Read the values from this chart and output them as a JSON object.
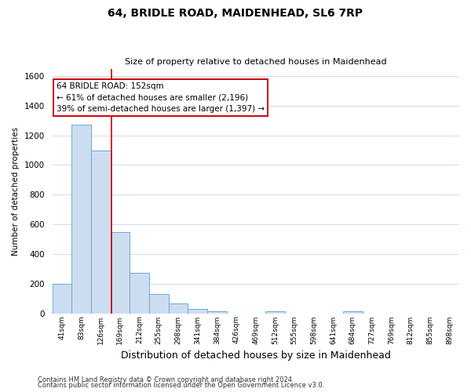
{
  "title": "64, BRIDLE ROAD, MAIDENHEAD, SL6 7RP",
  "subtitle": "Size of property relative to detached houses in Maidenhead",
  "xlabel": "Distribution of detached houses by size in Maidenhead",
  "ylabel": "Number of detached properties",
  "footer_line1": "Contains HM Land Registry data © Crown copyright and database right 2024.",
  "footer_line2": "Contains public sector information licensed under the Open Government Licence v3.0.",
  "bin_labels": [
    "41sqm",
    "83sqm",
    "126sqm",
    "169sqm",
    "212sqm",
    "255sqm",
    "298sqm",
    "341sqm",
    "384sqm",
    "426sqm",
    "469sqm",
    "512sqm",
    "555sqm",
    "598sqm",
    "641sqm",
    "684sqm",
    "727sqm",
    "769sqm",
    "812sqm",
    "855sqm",
    "898sqm"
  ],
  "bar_heights": [
    200,
    1270,
    1100,
    550,
    270,
    130,
    65,
    30,
    15,
    0,
    0,
    15,
    0,
    0,
    0,
    15,
    0,
    0,
    0,
    0,
    0
  ],
  "bar_color": "#ccddf0",
  "bar_edge_color": "#6aaad4",
  "ylim": [
    0,
    1650
  ],
  "yticks": [
    0,
    200,
    400,
    600,
    800,
    1000,
    1200,
    1400,
    1600
  ],
  "vline_x": 2.57,
  "vline_color": "#cc0000",
  "annotation_title": "64 BRIDLE ROAD: 152sqm",
  "annotation_line1": "← 61% of detached houses are smaller (2,196)",
  "annotation_line2": "39% of semi-detached houses are larger (1,397) →",
  "annotation_box_color": "#ffffff",
  "annotation_box_edge": "#cc0000",
  "bg_color": "#ffffff",
  "grid_color": "#c8d4e8"
}
